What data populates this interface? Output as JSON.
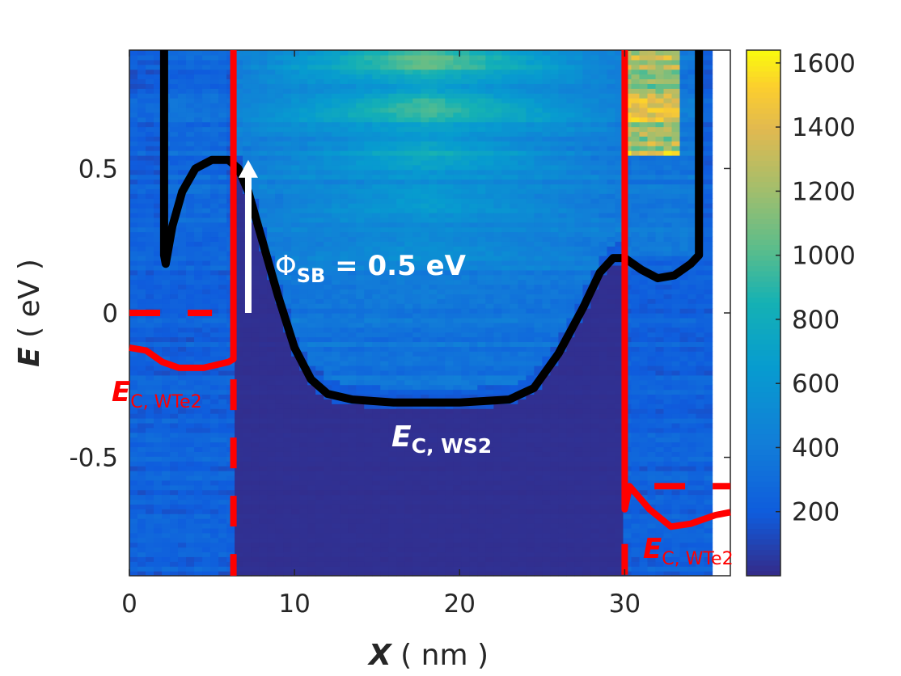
{
  "chart_data": {
    "type": "heatmap",
    "xlabel": {
      "symbol": "X",
      "unit": "( nm )"
    },
    "ylabel": {
      "symbol": "E",
      "unit": "( eV )"
    },
    "xlim": [
      0,
      36.4
    ],
    "ylim": [
      -0.91,
      0.91
    ],
    "xticks": [
      0,
      10,
      20,
      30
    ],
    "xtick_labels": [
      "0",
      "10",
      "20",
      "30"
    ],
    "yticks": [
      0.5,
      0,
      -0.5
    ],
    "ytick_labels": [
      "0.5",
      "0",
      "-0.5"
    ],
    "grid": false,
    "colormap": "parula",
    "colorbar": {
      "range": [
        0,
        1640
      ],
      "ticks": [
        200,
        400,
        600,
        800,
        1000,
        1200,
        1400,
        1600
      ],
      "tick_labels": [
        "200",
        "400",
        "600",
        "800",
        "1000",
        "1200",
        "1400",
        "1600"
      ]
    },
    "heatmap_extent_x": [
      0,
      35.3
    ],
    "lines": [
      {
        "name": "Ec_WS2",
        "color": "#000000",
        "style": "solid",
        "x": [
          2.1,
          2.1,
          2.2,
          2.6,
          3.2,
          4.0,
          5.0,
          6.0,
          6.6,
          7.2,
          8.0,
          9.0,
          10.0,
          11.0,
          12.0,
          13.5,
          16.0,
          20.0,
          23.0,
          24.5,
          26.0,
          27.5,
          28.5,
          29.3,
          30.0,
          31.0,
          32.0,
          33.0,
          34.0,
          34.5,
          34.5
        ],
        "y": [
          0.91,
          0.2,
          0.17,
          0.3,
          0.42,
          0.5,
          0.53,
          0.53,
          0.5,
          0.42,
          0.26,
          0.06,
          -0.12,
          -0.23,
          -0.28,
          -0.3,
          -0.31,
          -0.31,
          -0.3,
          -0.26,
          -0.14,
          0.02,
          0.14,
          0.19,
          0.19,
          0.15,
          0.12,
          0.13,
          0.17,
          0.2,
          0.91
        ]
      },
      {
        "name": "Ec_WTe2_left",
        "color": "#ff0000",
        "style": "solid",
        "x": [
          0,
          1.0,
          2.0,
          3.0,
          4.5,
          6.0,
          6.3,
          6.3
        ],
        "y": [
          -0.12,
          -0.13,
          -0.17,
          -0.19,
          -0.19,
          -0.17,
          -0.16,
          0.91
        ]
      },
      {
        "name": "Ec_WTe2_right",
        "color": "#ff0000",
        "style": "solid",
        "x": [
          30.0,
          30.0,
          30.3,
          31.5,
          32.8,
          34.0,
          35.5,
          36.4
        ],
        "y": [
          0.91,
          -0.68,
          -0.6,
          -0.68,
          -0.74,
          -0.73,
          -0.7,
          -0.69
        ]
      },
      {
        "name": "left_vertical_dashed",
        "color": "#ff0000",
        "style": "dashed",
        "x": [
          6.3,
          6.3
        ],
        "y": [
          -0.23,
          -0.91
        ]
      },
      {
        "name": "right_vertical_dashed",
        "color": "#ff0000",
        "style": "dashed",
        "x": [
          30.0,
          30.0
        ],
        "y": [
          -0.8,
          -0.91
        ]
      },
      {
        "name": "left_fermi_dashed",
        "color": "#ff0000",
        "style": "dashed",
        "x": [
          0,
          5.0
        ],
        "y": [
          0,
          0
        ]
      },
      {
        "name": "right_fermi_dashed",
        "color": "#ff0000",
        "style": "dashed",
        "x": [
          31.8,
          36.4
        ],
        "y": [
          -0.6,
          -0.6
        ]
      }
    ],
    "arrow": {
      "x": 7.2,
      "y_from": 0.0,
      "y_to": 0.53,
      "color": "#ffffff"
    },
    "annotations": {
      "phi": {
        "main": "Φ",
        "sub": "SB",
        "rest": " = 0.5 eV",
        "color": "#ffffff"
      },
      "ec_ws2": {
        "main": "E",
        "sub": "C, WS2",
        "color": "#ffffff"
      },
      "ec_wte2_left": {
        "main": "E",
        "sub": "C, WTe2",
        "color": "#ff0000"
      },
      "ec_wte2_right": {
        "main": "E",
        "sub": "C, WTe2",
        "color": "#ff0000"
      }
    }
  }
}
